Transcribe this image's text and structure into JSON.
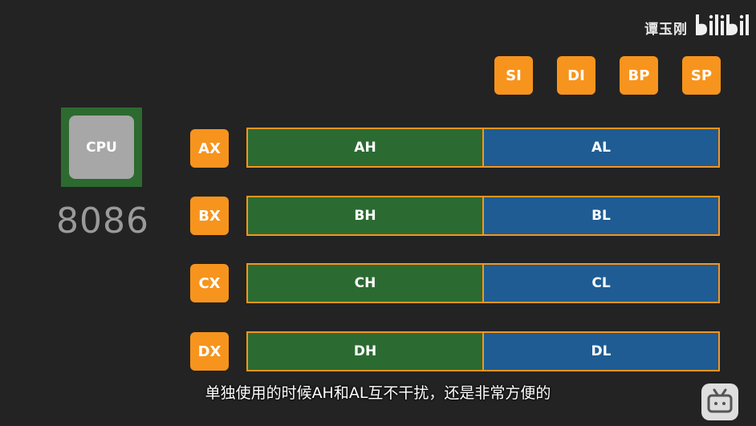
{
  "watermark": {
    "author": "谭玉刚",
    "logo": "bilibili"
  },
  "pointer_registers": [
    "SI",
    "DI",
    "BP",
    "SP"
  ],
  "cpu": {
    "chip_label": "CPU",
    "model": "8086"
  },
  "registers": [
    {
      "name": "AX",
      "high": "AH",
      "low": "AL"
    },
    {
      "name": "BX",
      "high": "BH",
      "low": "BL"
    },
    {
      "name": "CX",
      "high": "CH",
      "low": "CL"
    },
    {
      "name": "DX",
      "high": "DH",
      "low": "DL"
    }
  ],
  "subtitle": "单独使用的时候AH和AL互不干扰，还是非常方便的",
  "colors": {
    "accent": "#f7941d",
    "high_byte": "#2b6b31",
    "low_byte": "#1e5c93",
    "background": "#232323"
  }
}
